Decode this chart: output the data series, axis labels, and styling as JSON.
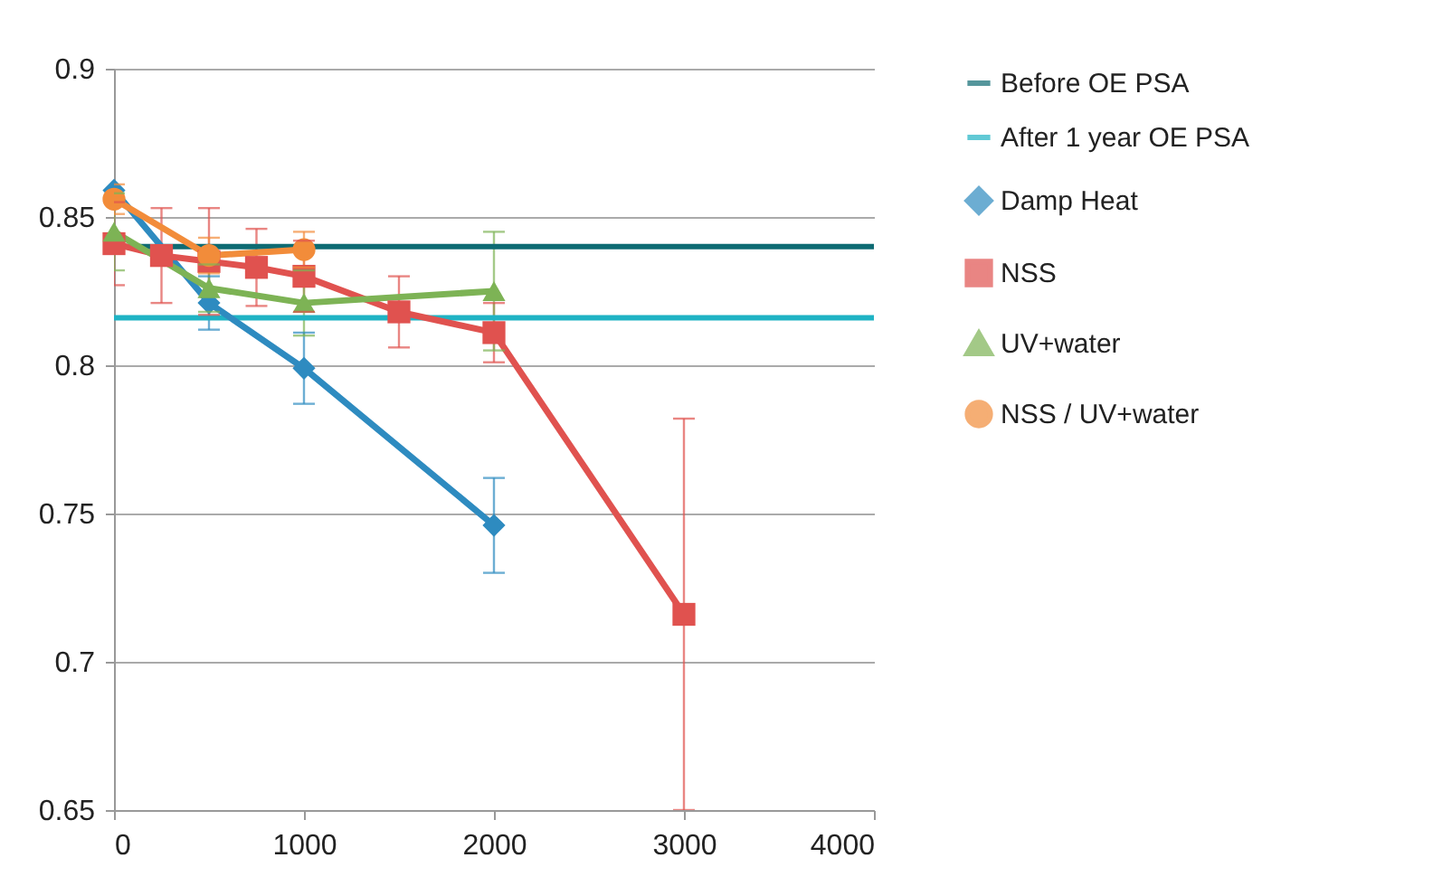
{
  "chart_data": {
    "type": "line",
    "xlim": [
      0,
      4000
    ],
    "xticks": [
      0,
      1000,
      2000,
      3000,
      4000
    ],
    "ylim": [
      0.65,
      0.9
    ],
    "yticks": [
      0.65,
      0.7,
      0.75,
      0.8,
      0.85,
      0.9
    ],
    "grid": "y",
    "legend": "right",
    "line_style": "solid",
    "ref_lines": [
      {
        "axis": "y",
        "value": 0.84,
        "label": "Before OE PSA",
        "color": "#0e6b73"
      },
      {
        "axis": "y",
        "value": 0.816,
        "label": "After 1 year OE PSA",
        "color": "#1fb3c4"
      }
    ],
    "series": [
      {
        "name": "Damp Heat",
        "color": "#2e8bc0",
        "marker": "diamond",
        "x": [
          0,
          500,
          1000,
          2000
        ],
        "values": [
          0.859,
          0.821,
          0.799,
          0.746
        ],
        "errors": [
          null,
          0.009,
          0.012,
          0.016
        ]
      },
      {
        "name": "NSS",
        "color": "#e0524f",
        "marker": "square",
        "x": [
          0,
          250,
          500,
          750,
          1000,
          1500,
          2000,
          3000
        ],
        "values": [
          0.841,
          0.837,
          0.835,
          0.833,
          0.83,
          0.818,
          0.811,
          0.716
        ],
        "errors": [
          0.014,
          0.016,
          0.018,
          0.013,
          0.012,
          0.012,
          0.01,
          0.066
        ]
      },
      {
        "name": "UV+water",
        "color": "#7db355",
        "marker": "triangle",
        "x": [
          0,
          500,
          1000,
          2000
        ],
        "values": [
          0.845,
          0.826,
          0.821,
          0.825
        ],
        "errors": [
          0.013,
          0.008,
          0.011,
          0.02
        ]
      },
      {
        "name": "NSS / UV+water",
        "color": "#f28c3a",
        "marker": "circle",
        "x": [
          0,
          500,
          1000
        ],
        "values": [
          0.856,
          0.837,
          0.839
        ],
        "errors": [
          0.005,
          0.006,
          0.006
        ]
      }
    ]
  }
}
